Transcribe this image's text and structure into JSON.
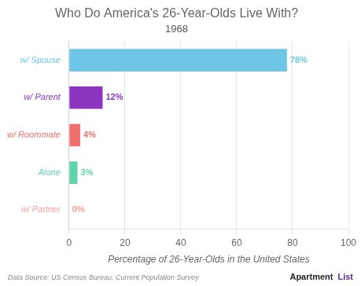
{
  "chart_data": {
    "type": "bar",
    "orientation": "horizontal",
    "title": "Who Do America's 26-Year-Olds Live With?",
    "subtitle": "1968",
    "categories": [
      "w/ Spouse",
      "w/ Parent",
      "w/ Roommate",
      "Alone",
      "w/ Partner"
    ],
    "values": [
      78,
      12,
      4,
      3,
      0
    ],
    "value_labels": [
      "78%",
      "12%",
      "4%",
      "3%",
      "0%"
    ],
    "data_labels": true,
    "colors": [
      "#6EC6E6",
      "#8B35C0",
      "#F07070",
      "#5FD4A8",
      "#F5A0A0"
    ],
    "xlabel": "Percentage of 26-Year-Olds in the United States",
    "xlim": [
      0,
      100
    ],
    "xticks": [
      0,
      20,
      40,
      60,
      80,
      100
    ],
    "grid": true,
    "annotations": [
      "Data Source: US Census Bureau, Current Population Survey",
      "Apartment",
      "List"
    ]
  }
}
